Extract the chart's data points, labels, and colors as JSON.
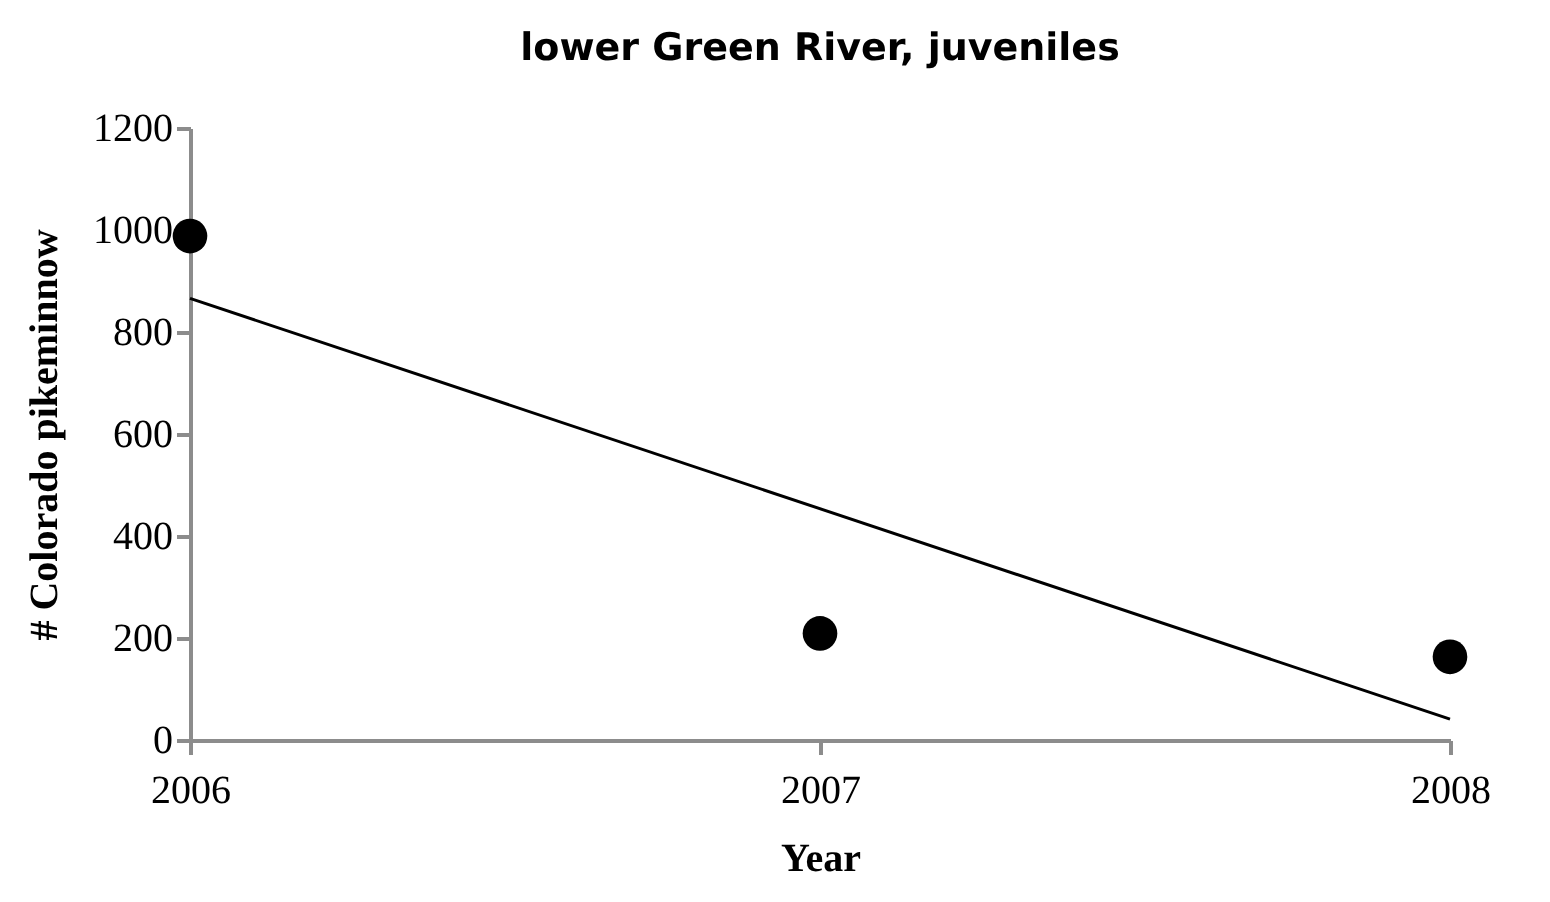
{
  "chart_data": {
    "type": "scatter",
    "title": "lower Green River, juveniles",
    "xlabel": "Year",
    "ylabel": "# Colorado pikeminnow",
    "x": [
      2006,
      2007,
      2008
    ],
    "xlim": [
      2006,
      2008
    ],
    "xticks": [
      2006,
      2007,
      2008
    ],
    "ylim": [
      0,
      1200
    ],
    "yticks": [
      0,
      200,
      400,
      600,
      800,
      1000,
      1200
    ],
    "series": [
      {
        "color": "#000000",
        "marker": "circle",
        "values": [
          988,
          209,
          163
        ]
      },
      {
        "type": "line",
        "color": "#000000",
        "line_style": "solid",
        "x": [
          2006,
          2008
        ],
        "values": [
          866,
          41
        ]
      }
    ],
    "grid": false
  }
}
